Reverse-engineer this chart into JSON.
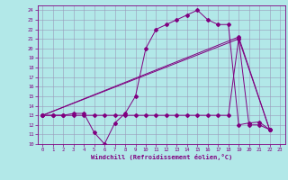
{
  "xlabel": "Windchill (Refroidissement éolien,°C)",
  "bg_color": "#b2e8e8",
  "line_color": "#800080",
  "grid_color": "#9999bb",
  "xlim": [
    -0.5,
    23.5
  ],
  "ylim": [
    10,
    24.5
  ],
  "xticks": [
    0,
    1,
    2,
    3,
    4,
    5,
    6,
    7,
    8,
    9,
    10,
    11,
    12,
    13,
    14,
    15,
    16,
    17,
    18,
    19,
    20,
    21,
    22,
    23
  ],
  "yticks": [
    10,
    11,
    12,
    13,
    14,
    15,
    16,
    17,
    18,
    19,
    20,
    21,
    22,
    23,
    24
  ],
  "line1_x": [
    0,
    1,
    2,
    3,
    4,
    5,
    6,
    7,
    8,
    9,
    10,
    11,
    12,
    13,
    14,
    15,
    16,
    17,
    18,
    19,
    20,
    21,
    22
  ],
  "line1_y": [
    13,
    13,
    13,
    13.2,
    13.2,
    11.2,
    10,
    12.2,
    13.2,
    15,
    20,
    22,
    22.5,
    23,
    23.5,
    24,
    23,
    22.5,
    22.5,
    12,
    12.2,
    12.3,
    11.5
  ],
  "line2_x": [
    0,
    1,
    2,
    3,
    4,
    5,
    6,
    7,
    8,
    9,
    10,
    11,
    12,
    13,
    14,
    15,
    16,
    17,
    18,
    19,
    20,
    21,
    22
  ],
  "line2_y": [
    13,
    13,
    13,
    13,
    13,
    13,
    13,
    13,
    13,
    13,
    13,
    13,
    13,
    13,
    13,
    13,
    13,
    13,
    13,
    21,
    12,
    12,
    11.5
  ],
  "line3_x": [
    0,
    19,
    22
  ],
  "line3_y": [
    13,
    21,
    11.5
  ],
  "line4_x": [
    0,
    19,
    22
  ],
  "line4_y": [
    13,
    21.2,
    11.5
  ]
}
